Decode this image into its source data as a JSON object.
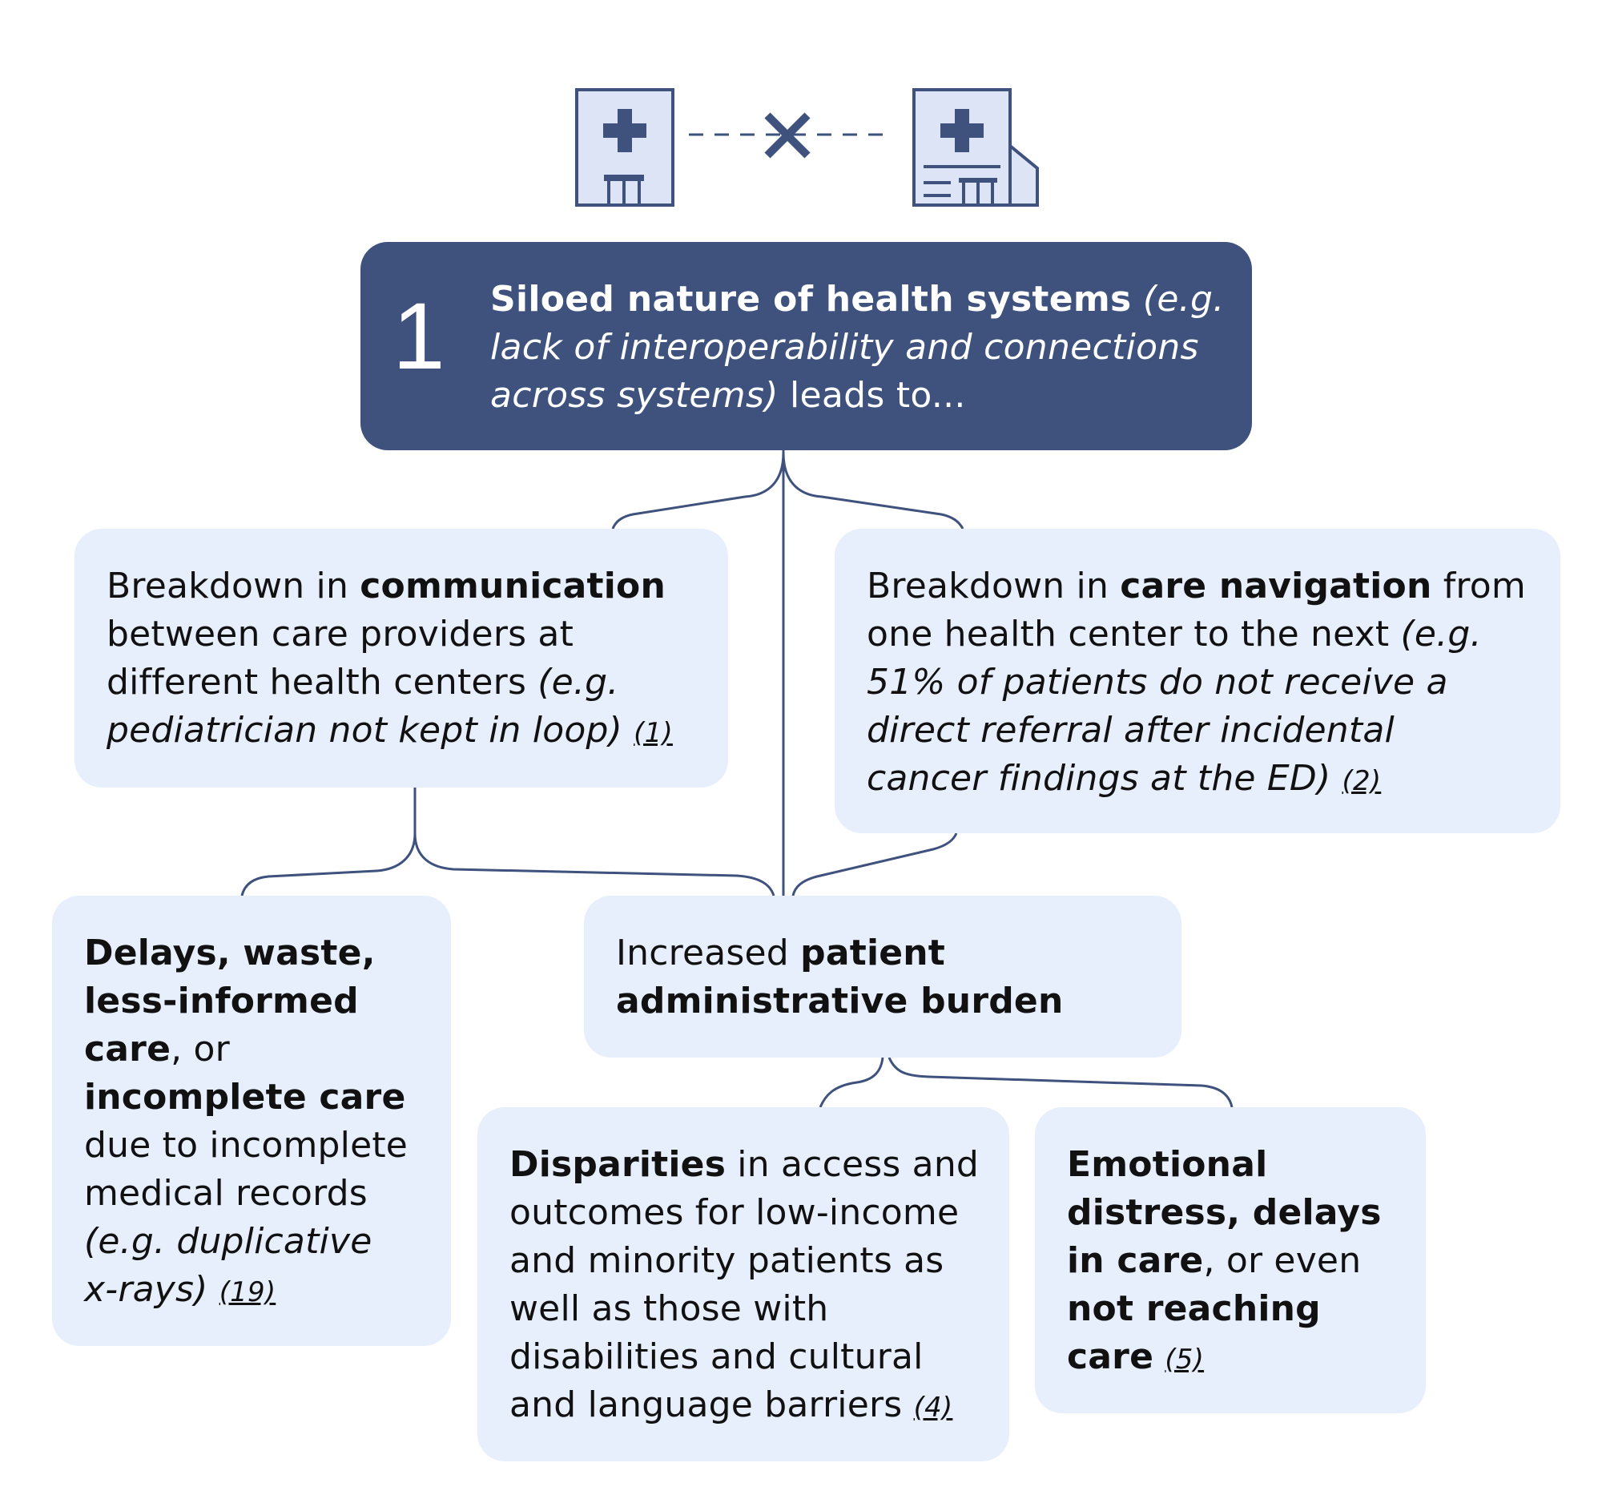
{
  "colors": {
    "navy": "#3e527d",
    "box_bg": "#e7eefc",
    "icon_fill": "#dde4f6",
    "text": "#111111"
  },
  "icons": {
    "left": "hospital-building-icon",
    "middle": "disconnect-x-icon",
    "right": "hospital-building-icon"
  },
  "header": {
    "number": "1",
    "bold": "Siloed nature of health systems",
    "italic_1": " (e.g.",
    "italic_2": "lack of interoperability and connections",
    "italic_3": "across systems)",
    "tail": " leads to..."
  },
  "communication": {
    "t1": "Breakdown in ",
    "b1": "communication",
    "t2": "between care providers at",
    "t3": "different health centers ",
    "i1": "(e.g.",
    "i2": "pediatrician not kept in loop)",
    "cite": "(1)"
  },
  "navigation": {
    "t1": "Breakdown in ",
    "b1": "care navigation",
    "t2": " from",
    "t3": "one health center to the next ",
    "i1": "(e.g.",
    "i2": "51% of patients do not receive a",
    "i3": "direct referral after incidental",
    "i4": "cancer findings at the ED)",
    "cite": "(2)"
  },
  "delays": {
    "b1": "Delays, waste,",
    "b2": "less-informed",
    "b3": "care",
    "t1": ", or",
    "b4": "incomplete care",
    "t2": "due to incomplete",
    "t3": "medical records",
    "i1": "(e.g. duplicative",
    "i2": "x-rays)",
    "cite": "(19)"
  },
  "burden": {
    "t1": "Increased ",
    "b1": "patient",
    "b2": "administrative burden"
  },
  "disparities": {
    "b1": "Disparities",
    "t1": " in access and",
    "t2": "outcomes for low-income",
    "t3": "and minority patients as",
    "t4": "well as those with",
    "t5": "disabilities and cultural",
    "t6": "and language barriers",
    "cite": "(4)"
  },
  "emotional": {
    "b1": "Emotional",
    "b2": "distress, delays",
    "b3": "in care",
    "t1": ", or even",
    "b4": "not reaching",
    "b5": "care",
    "cite": "(5)"
  }
}
